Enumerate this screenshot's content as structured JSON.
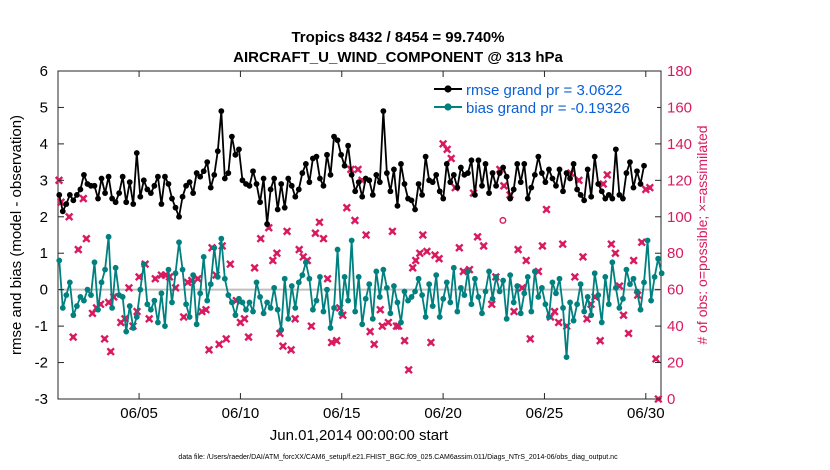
{
  "chart_data": {
    "type": "line",
    "title": "Tropics 8432 / 8454 = 99.740%",
    "subtitle": "AIRCRAFT_U_WIND_COMPONENT @ 313 hPa",
    "xlabel": "Jun.01,2014 00:00:00 start",
    "ylabel": "rmse and bias (model - observation)",
    "ylabel_right": "# of obs: o=possible; ×=assimilated",
    "footer": "data file: /Users/raeder/DAI/ATM_forcXX/CAM6_setup/f.e21.FHIST_BGC.f09_025.CAM6assim.011/Diags_NTrS_2014-06/obs_diag_output.nc",
    "xlim": [
      1.0,
      30.75
    ],
    "ylim": [
      -3,
      6
    ],
    "ylim_right": [
      0,
      180
    ],
    "xticks": [
      5,
      10,
      15,
      20,
      25,
      30
    ],
    "xtick_labels": [
      "06/05",
      "06/10",
      "06/15",
      "06/20",
      "06/25",
      "06/30"
    ],
    "yticks": [
      -3,
      -2,
      -1,
      0,
      1,
      2,
      3,
      4,
      5,
      6
    ],
    "yticks_right": [
      0,
      20,
      40,
      60,
      80,
      100,
      120,
      140,
      160,
      180
    ],
    "colors": {
      "rmse": "#000000",
      "bias": "#00807f",
      "obs": "#d81b60",
      "zero": "#bfbfbf",
      "legend_text": "#0a5fd8"
    },
    "legend_position": "top-right",
    "series": [
      {
        "name": "rmse grand pr = 3.0622",
        "key": "rmse",
        "values": [
          2.6,
          2.15,
          2.35,
          2.6,
          2.45,
          2.6,
          2.75,
          3.15,
          2.9,
          2.85,
          2.85,
          2.5,
          3.05,
          2.65,
          3.1,
          2.5,
          2.4,
          2.65,
          3.1,
          2.4,
          2.95,
          2.35,
          3.75,
          2.55,
          3,
          2.75,
          2.65,
          2.85,
          3.1,
          2.35,
          3.1,
          2.9,
          2.5,
          2.25,
          2.0,
          2.55,
          2.85,
          2.95,
          2.65,
          3.2,
          3.1,
          3.25,
          3.5,
          2.8,
          3.15,
          3.8,
          4.9,
          3.05,
          3.2,
          4.2,
          3.7,
          3.85,
          3.0,
          2.9,
          2.85,
          3.25,
          2.9,
          2.4,
          3.05,
          1.8,
          2.75,
          3.05,
          2.2,
          2.9,
          2.25,
          3.05,
          2.85,
          2.55,
          2.75,
          3.2,
          3.45,
          2.95,
          3.6,
          3.65,
          3.05,
          2.85,
          3.7,
          3.15,
          4.2,
          4.1,
          3.7,
          3.4,
          3.95,
          3.15,
          2.7,
          2.95,
          2.55,
          3.05,
          3.0,
          2.6,
          3.15,
          2.95,
          4.9,
          3.2,
          2.7,
          3.3,
          2.3,
          3.45,
          2.9,
          2.5,
          2.45,
          2.2,
          2.9,
          2.6,
          3.65,
          3.0,
          2.95,
          3.15,
          2.7,
          2.5,
          3.45,
          2.95,
          3.15,
          2.8,
          3.35,
          3.15,
          3.2,
          3.55,
          2.6,
          3.55,
          2.85,
          3.45,
          2.65,
          3.2,
          2.85,
          3.2,
          3.35,
          3.1,
          2.5,
          2.75,
          3.45,
          2.95,
          3.45,
          2.5,
          2.8,
          3.15,
          3.65,
          3.2,
          2.95,
          3.3,
          3.05,
          2.85,
          3.3,
          2.7,
          3.2,
          3.05,
          3.45,
          2.75,
          2.6,
          2.45,
          3.3,
          2.55,
          3.65,
          2.9,
          2.7,
          2.5,
          2.6,
          2.5,
          3.85,
          2.6,
          2.5,
          3.2,
          3.5,
          2.8,
          3.25,
          2.9,
          3.4
        ]
      },
      {
        "name": "bias grand pr = -0.19326",
        "key": "bias",
        "values": [
          0.8,
          -0.5,
          -0.15,
          0.2,
          -0.7,
          -0.45,
          -0.2,
          -0.3,
          0.0,
          -0.15,
          0.75,
          -0.55,
          0.2,
          0.55,
          1.45,
          -0.5,
          0.6,
          -0.15,
          -0.2,
          -1.15,
          -0.45,
          -1.05,
          -0.75,
          0.0,
          0.7,
          -0.4,
          -0.55,
          -0.3,
          -0.9,
          -0.1,
          -1.0,
          0.55,
          -0.35,
          0.45,
          1.3,
          0.55,
          -0.4,
          -0.75,
          0.4,
          -0.95,
          -0.1,
          0.9,
          -0.3,
          0.15,
          1.15,
          0.35,
          1.4,
          0.3,
          -0.15,
          -0.35,
          -0.7,
          -0.25,
          -0.35,
          -0.55,
          -0.35,
          -0.6,
          0.2,
          -0.2,
          -0.65,
          -0.35,
          -0.5,
          0.05,
          -0.55,
          -1.1,
          0.3,
          -0.8,
          0.1,
          -0.5,
          0.2,
          0.4,
          0.75,
          0.3,
          -0.55,
          -0.3,
          0.35,
          -0.6,
          0.0,
          -1.05,
          -0.5,
          1.1,
          -0.65,
          0.35,
          -0.3,
          1.35,
          -0.6,
          0.35,
          -0.95,
          -0.25,
          0.15,
          -0.8,
          0.5,
          -0.2,
          0.55,
          0.05,
          -0.65,
          0.1,
          -0.35,
          -0.9,
          -0.05,
          -0.3,
          -0.2,
          -0.05,
          0.3,
          -0.15,
          -0.75,
          0.15,
          -0.45,
          0.4,
          -0.75,
          -0.25,
          0.2,
          -0.35,
          0.6,
          -0.6,
          0.05,
          -0.15,
          0.5,
          -0.4,
          0.3,
          -0.2,
          -0.65,
          -0.05,
          0.5,
          -0.25,
          0.35,
          -0.05,
          0.25,
          -0.8,
          0.4,
          -0.35,
          0.1,
          -0.65,
          -0.1,
          0.35,
          -0.6,
          0.5,
          -0.2,
          0.05,
          -0.4,
          -0.75,
          0.2,
          -0.1,
          0.3,
          -0.5,
          -1.85,
          -0.35,
          -0.85,
          -0.4,
          0.15,
          -0.6,
          -0.2,
          -0.7,
          0.45,
          -0.15,
          -0.9,
          0.35,
          -0.4,
          0.75,
          0.05,
          -0.5,
          -0.25,
          0.55,
          0.15,
          0.3,
          -0.05,
          -0.55,
          0.2,
          1.35,
          -0.3,
          0.35,
          0.85,
          0.45
        ]
      }
    ],
    "obs_assimilated": {
      "name": "# of obs assimilated",
      "points": [
        [
          1.05,
          120
        ],
        [
          1.15,
          108
        ],
        [
          1.55,
          100
        ],
        [
          1.75,
          34
        ],
        [
          2.0,
          82
        ],
        [
          2.25,
          110
        ],
        [
          2.4,
          88
        ],
        [
          2.7,
          47
        ],
        [
          2.9,
          50
        ],
        [
          3.1,
          52
        ],
        [
          3.3,
          33
        ],
        [
          3.5,
          53
        ],
        [
          3.6,
          26
        ],
        [
          3.75,
          56
        ],
        [
          4.1,
          42
        ],
        [
          4.3,
          44
        ],
        [
          4.5,
          61
        ],
        [
          4.7,
          40
        ],
        [
          4.9,
          48
        ],
        [
          5.0,
          67
        ],
        [
          5.3,
          74
        ],
        [
          5.5,
          44
        ],
        [
          5.8,
          66
        ],
        [
          6.1,
          68
        ],
        [
          6.3,
          68
        ],
        [
          6.5,
          67
        ],
        [
          6.8,
          61
        ],
        [
          7.2,
          45
        ],
        [
          7.4,
          64
        ],
        [
          7.6,
          65
        ],
        [
          7.9,
          66
        ],
        [
          8.1,
          48
        ],
        [
          8.3,
          49
        ],
        [
          8.45,
          27
        ],
        [
          8.6,
          83
        ],
        [
          8.8,
          68
        ],
        [
          8.95,
          30
        ],
        [
          9.1,
          84
        ],
        [
          9.3,
          33
        ],
        [
          9.5,
          74
        ],
        [
          9.8,
          54
        ],
        [
          10.0,
          42
        ],
        [
          10.2,
          44
        ],
        [
          10.4,
          34
        ],
        [
          10.7,
          72
        ],
        [
          11.0,
          88
        ],
        [
          11.4,
          94
        ],
        [
          11.6,
          76
        ],
        [
          11.8,
          80
        ],
        [
          11.95,
          36
        ],
        [
          12.1,
          29
        ],
        [
          12.3,
          92
        ],
        [
          12.5,
          27
        ],
        [
          12.7,
          44
        ],
        [
          12.9,
          82
        ],
        [
          13.1,
          78
        ],
        [
          13.3,
          76
        ],
        [
          13.5,
          40
        ],
        [
          13.7,
          91
        ],
        [
          13.9,
          97
        ],
        [
          14.1,
          88
        ],
        [
          14.3,
          66
        ],
        [
          14.5,
          31
        ],
        [
          14.75,
          32
        ],
        [
          14.9,
          50
        ],
        [
          15.05,
          46
        ],
        [
          15.25,
          105
        ],
        [
          15.45,
          126
        ],
        [
          15.65,
          98
        ],
        [
          15.8,
          126
        ],
        [
          16.0,
          120
        ],
        [
          16.2,
          90
        ],
        [
          16.4,
          37
        ],
        [
          16.6,
          30
        ],
        [
          16.9,
          49
        ],
        [
          17.0,
          40
        ],
        [
          17.3,
          42
        ],
        [
          17.5,
          92
        ],
        [
          17.7,
          40
        ],
        [
          17.8,
          40
        ],
        [
          18.1,
          32
        ],
        [
          18.3,
          16
        ],
        [
          18.5,
          72
        ],
        [
          18.65,
          76
        ],
        [
          18.85,
          80
        ],
        [
          19.0,
          90
        ],
        [
          19.2,
          81
        ],
        [
          19.4,
          31
        ],
        [
          19.6,
          79
        ],
        [
          19.8,
          77
        ],
        [
          20.0,
          140
        ],
        [
          20.2,
          137
        ],
        [
          20.4,
          132
        ],
        [
          20.6,
          116
        ],
        [
          20.8,
          83
        ],
        [
          21.0,
          70
        ],
        [
          21.3,
          71
        ],
        [
          21.5,
          113
        ],
        [
          21.7,
          89
        ],
        [
          22.0,
          84
        ],
        [
          22.4,
          52
        ],
        [
          22.6,
          67
        ],
        [
          22.8,
          126
        ],
        [
          23.0,
          117
        ],
        [
          23.3,
          112
        ],
        [
          23.5,
          48
        ],
        [
          23.7,
          82
        ],
        [
          23.9,
          61
        ],
        [
          24.1,
          76
        ],
        [
          24.3,
          33
        ],
        [
          24.7,
          70
        ],
        [
          24.9,
          84
        ],
        [
          25.1,
          104
        ],
        [
          25.3,
          45
        ],
        [
          25.5,
          48
        ],
        [
          25.7,
          42
        ],
        [
          25.9,
          85
        ],
        [
          26.1,
          40
        ],
        [
          26.3,
          124
        ],
        [
          26.5,
          67
        ],
        [
          26.7,
          120
        ],
        [
          26.9,
          78
        ],
        [
          27.1,
          44
        ],
        [
          27.3,
          52
        ],
        [
          27.5,
          56
        ],
        [
          27.75,
          32
        ],
        [
          27.9,
          118
        ],
        [
          28.1,
          123
        ],
        [
          28.3,
          85
        ],
        [
          28.5,
          80
        ],
        [
          28.7,
          62
        ],
        [
          28.9,
          46
        ],
        [
          29.15,
          36
        ],
        [
          29.4,
          76
        ],
        [
          29.6,
          57
        ],
        [
          29.8,
          86
        ],
        [
          30.0,
          115
        ],
        [
          30.2,
          116
        ],
        [
          30.5,
          22
        ],
        [
          30.62,
          0
        ]
      ]
    },
    "obs_possible": {
      "name": "# of obs possible",
      "points": [
        [
          22.95,
          98
        ]
      ]
    }
  }
}
